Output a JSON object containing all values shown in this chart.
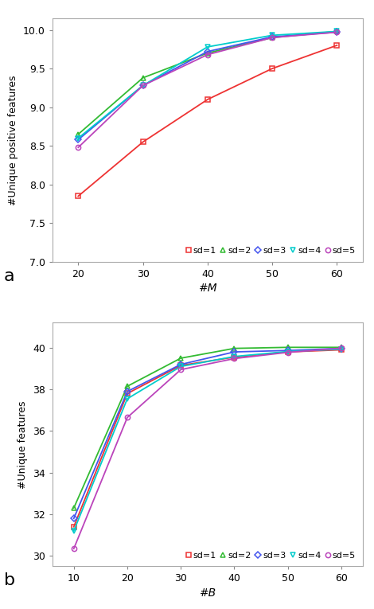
{
  "plot_a": {
    "x": [
      20,
      30,
      40,
      50,
      60
    ],
    "series": {
      "sd1": {
        "y": [
          7.85,
          8.55,
          9.1,
          9.5,
          9.8
        ],
        "color": "#EE3333",
        "marker": "s",
        "label": "sd=1"
      },
      "sd2": {
        "y": [
          8.65,
          9.38,
          9.7,
          9.9,
          9.98
        ],
        "color": "#33BB33",
        "marker": "^",
        "label": "sd=2"
      },
      "sd3": {
        "y": [
          8.58,
          9.28,
          9.72,
          9.91,
          9.97
        ],
        "color": "#4455EE",
        "marker": "D",
        "label": "sd=3"
      },
      "sd4": {
        "y": [
          8.6,
          9.28,
          9.78,
          9.93,
          9.98
        ],
        "color": "#00CCCC",
        "marker": "v",
        "label": "sd=4"
      },
      "sd5": {
        "y": [
          8.48,
          9.28,
          9.68,
          9.9,
          9.97
        ],
        "color": "#BB44BB",
        "marker": "o",
        "label": "sd=5"
      }
    },
    "xlabel": "#M",
    "ylabel": "#Unique positive features",
    "ylim": [
      7.0,
      10.15
    ],
    "yticks": [
      7.0,
      7.5,
      8.0,
      8.5,
      9.0,
      9.5,
      10.0
    ],
    "xlim": [
      16,
      64
    ],
    "xticks": [
      20,
      30,
      40,
      50,
      60
    ],
    "label": "a"
  },
  "plot_b": {
    "x": [
      10,
      20,
      30,
      40,
      50,
      60
    ],
    "series": {
      "sd1": {
        "y": [
          31.4,
          37.8,
          39.15,
          39.55,
          39.8,
          39.9
        ],
        "color": "#EE3333",
        "marker": "s",
        "label": "sd=1"
      },
      "sd2": {
        "y": [
          32.3,
          38.15,
          39.5,
          39.97,
          40.02,
          40.02
        ],
        "color": "#33BB33",
        "marker": "^",
        "label": "sd=2"
      },
      "sd3": {
        "y": [
          31.8,
          37.9,
          39.2,
          39.8,
          39.87,
          39.97
        ],
        "color": "#4455EE",
        "marker": "D",
        "label": "sd=3"
      },
      "sd4": {
        "y": [
          31.2,
          37.55,
          39.1,
          39.58,
          39.82,
          39.93
        ],
        "color": "#00CCCC",
        "marker": "v",
        "label": "sd=4"
      },
      "sd5": {
        "y": [
          30.35,
          36.65,
          38.95,
          39.48,
          39.78,
          39.98
        ],
        "color": "#BB44BB",
        "marker": "o",
        "label": "sd=5"
      }
    },
    "xlabel": "#B",
    "ylabel": "#Unique features",
    "ylim": [
      29.5,
      41.2
    ],
    "yticks": [
      30,
      32,
      34,
      36,
      38,
      40
    ],
    "xlim": [
      6,
      64
    ],
    "xticks": [
      10,
      20,
      30,
      40,
      50,
      60
    ],
    "label": "b"
  },
  "bg_color": "#FFFFFF",
  "axis_bg": "#FFFFFF",
  "font_size": 9,
  "marker_size": 4.5,
  "linewidth": 1.3
}
